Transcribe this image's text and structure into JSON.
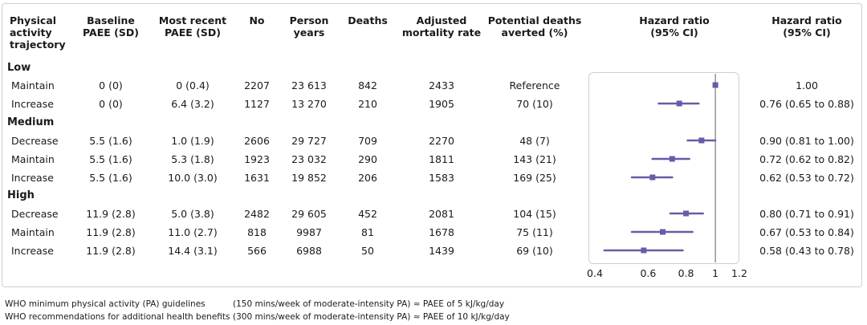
{
  "headers": {
    "trajectory": [
      "Physical",
      "activity",
      "trajectory"
    ],
    "baseline": [
      "Baseline",
      "PAEE (SD)"
    ],
    "recent": [
      "Most recent",
      "PAEE (SD)"
    ],
    "no": [
      "No"
    ],
    "person_years": [
      "Person",
      "years"
    ],
    "deaths": [
      "Deaths"
    ],
    "adjusted": [
      "Adjusted",
      "mortality rate"
    ],
    "averted": [
      "Potential deaths",
      "averted (%)"
    ],
    "hr_plot": [
      "Hazard ratio",
      "(95% CI)"
    ],
    "hr_text": [
      "Hazard ratio",
      "(95% CI)"
    ]
  },
  "groups": [
    "Low",
    "Medium",
    "High"
  ],
  "rows": [
    {
      "group": "Low",
      "trajectory": "Maintain",
      "baseline": "0 (0)",
      "recent": "0 (0.4)",
      "no": "2207",
      "person_years": "23 613",
      "deaths": "842",
      "adjusted": "2433",
      "averted": "Reference",
      "hr_text": "1.00"
    },
    {
      "group": "Low",
      "trajectory": "Increase",
      "baseline": "0 (0)",
      "recent": "6.4 (3.2)",
      "no": "1127",
      "person_years": "13 270",
      "deaths": "210",
      "adjusted": "1905",
      "averted": "70 (10)",
      "hr_text": "0.76 (0.65 to 0.88)"
    },
    {
      "group": "Medium",
      "trajectory": "Decrease",
      "baseline": "5.5 (1.6)",
      "recent": "1.0 (1.9)",
      "no": "2606",
      "person_years": "29 727",
      "deaths": "709",
      "adjusted": "2270",
      "averted": "48 (7)",
      "hr_text": "0.90 (0.81 to 1.00)"
    },
    {
      "group": "Medium",
      "trajectory": "Maintain",
      "baseline": "5.5 (1.6)",
      "recent": "5.3 (1.8)",
      "no": "1923",
      "person_years": "23 032",
      "deaths": "290",
      "adjusted": "1811",
      "averted": "143 (21)",
      "hr_text": "0.72 (0.62 to 0.82)"
    },
    {
      "group": "Medium",
      "trajectory": "Increase",
      "baseline": "5.5 (1.6)",
      "recent": "10.0 (3.0)",
      "no": "1631",
      "person_years": "19 852",
      "deaths": "206",
      "adjusted": "1583",
      "averted": "169 (25)",
      "hr_text": "0.62 (0.53 to 0.72)"
    },
    {
      "group": "High",
      "trajectory": "Decrease",
      "baseline": "11.9 (2.8)",
      "recent": "5.0 (3.8)",
      "no": "2482",
      "person_years": "29 605",
      "deaths": "452",
      "adjusted": "2081",
      "averted": "104 (15)",
      "hr_text": "0.80 (0.71 to 0.91)"
    },
    {
      "group": "High",
      "trajectory": "Maintain",
      "baseline": "11.9 (2.8)",
      "recent": "11.0 (2.7)",
      "no": "818",
      "person_years": "9987",
      "deaths": "81",
      "adjusted": "1678",
      "averted": "75 (11)",
      "hr_text": "0.67 (0.53 to 0.84)"
    },
    {
      "group": "High",
      "trajectory": "Increase",
      "baseline": "11.9 (2.8)",
      "recent": "14.4 (3.1)",
      "no": "566",
      "person_years": "6988",
      "deaths": "50",
      "adjusted": "1439",
      "averted": "69 (10)",
      "hr_text": "0.58 (0.43 to 0.78)"
    }
  ],
  "chart_data": {
    "type": "forest",
    "x_scale": "log",
    "xlim": [
      0.4,
      1.2
    ],
    "x_ticks": [
      0.4,
      0.6,
      0.8,
      1,
      1.2
    ],
    "x_tick_labels": [
      "0.4",
      "0.6",
      "0.8",
      "1",
      "1.2"
    ],
    "reference_line": 1,
    "marker_color": "#6a5aa8",
    "reference_color": "#7a7a7a",
    "points": [
      {
        "label": "Low - Maintain",
        "hr": 1.0,
        "lo": null,
        "hi": null
      },
      {
        "label": "Low - Increase",
        "hr": 0.76,
        "lo": 0.65,
        "hi": 0.88
      },
      {
        "label": "Medium - Decrease",
        "hr": 0.9,
        "lo": 0.81,
        "hi": 1.0
      },
      {
        "label": "Medium - Maintain",
        "hr": 0.72,
        "lo": 0.62,
        "hi": 0.82
      },
      {
        "label": "Medium - Increase",
        "hr": 0.62,
        "lo": 0.53,
        "hi": 0.72
      },
      {
        "label": "High - Decrease",
        "hr": 0.8,
        "lo": 0.71,
        "hi": 0.91
      },
      {
        "label": "High - Maintain",
        "hr": 0.67,
        "lo": 0.53,
        "hi": 0.84
      },
      {
        "label": "High - Increase",
        "hr": 0.58,
        "lo": 0.43,
        "hi": 0.78
      }
    ]
  },
  "notes": [
    {
      "label": "WHO minimum physical activity (PA) guidelines",
      "value": "(150 mins/week of moderate-intensity PA) ≈ PAEE of 5 kJ/kg/day"
    },
    {
      "label": "WHO recommendations for additional health benefits",
      "value": "(300 mins/week of moderate-intensity PA) ≈ PAEE of 10 kJ/kg/day"
    }
  ]
}
